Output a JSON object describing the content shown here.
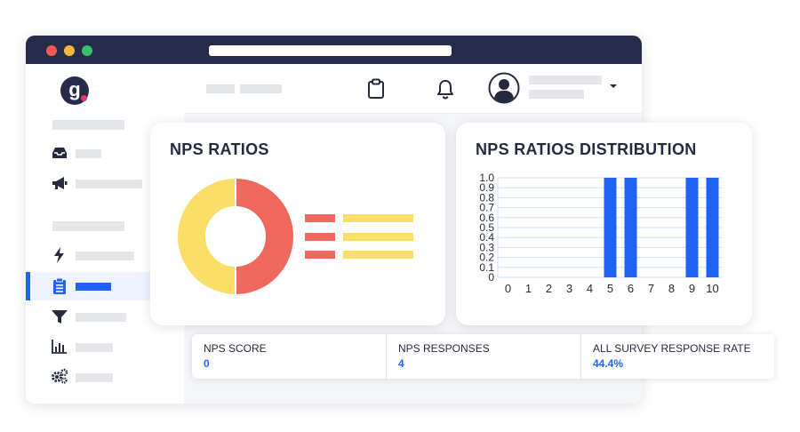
{
  "window": {
    "traffic_lights": [
      "close",
      "minimize",
      "maximize"
    ]
  },
  "colors": {
    "accent": "#1f62f5",
    "dark": "#262b4a",
    "donut_red": "#f0675d",
    "donut_yellow": "#fbde67",
    "bar_blue": "#1f62f5"
  },
  "header": {
    "icons": [
      "clipboard-icon",
      "bell-icon",
      "user-avatar-icon",
      "chevron-down-icon"
    ]
  },
  "sidebar": {
    "logo_letter": "g",
    "icons": [
      "inbox-icon",
      "megaphone-icon",
      "lightning-icon",
      "clipboard-list-icon",
      "filter-icon",
      "bar-chart-icon",
      "gears-icon"
    ],
    "active_index": 3
  },
  "nps_ratios": {
    "title": "NPS RATIOS",
    "donut": [
      {
        "label": "",
        "value": 50,
        "color": "#f0675d"
      },
      {
        "label": "",
        "value": 50,
        "color": "#fbde67"
      }
    ]
  },
  "distribution": {
    "title": "NPS RATIOS DISTRIBUTION"
  },
  "chart_data": {
    "type": "bar",
    "title": "NPS RATIOS DISTRIBUTION",
    "categories": [
      "0",
      "1",
      "2",
      "3",
      "4",
      "5",
      "6",
      "7",
      "8",
      "9",
      "10"
    ],
    "values": [
      0,
      0,
      0,
      0,
      0,
      1,
      1,
      0,
      0,
      1,
      1
    ],
    "ylim": [
      0,
      1.0
    ],
    "yticks": [
      "0",
      "0.1",
      "0.2",
      "0.3",
      "0.4",
      "0.5",
      "0.6",
      "0.7",
      "0.8",
      "0.9",
      "1.0"
    ],
    "grid": true,
    "xlabel": "",
    "ylabel": ""
  },
  "stats": [
    {
      "label": "NPS SCORE",
      "value": "0"
    },
    {
      "label": "NPS RESPONSES",
      "value": "4"
    },
    {
      "label": "ALL SURVEY RESPONSE RATE",
      "value": "44.4%"
    }
  ]
}
